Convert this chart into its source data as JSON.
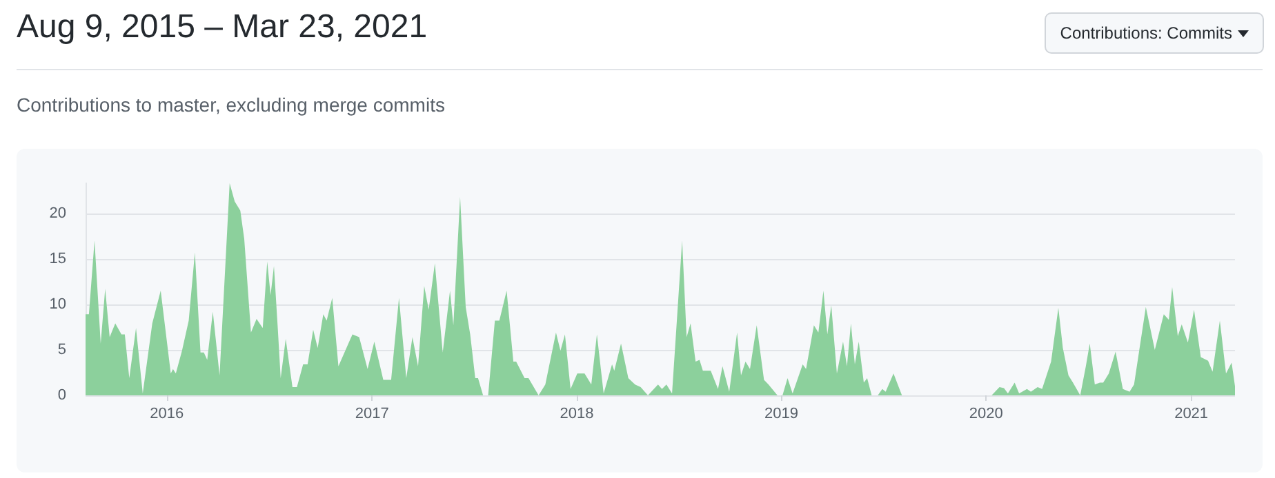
{
  "chart_data": {
    "type": "area",
    "title": "Aug 9, 2015 – Mar 23, 2021",
    "subtitle": "Contributions to master, excluding merge commits",
    "annotations": [
      "Contributions: Commits"
    ],
    "x": [
      "2015-08-09",
      "2015-08-15",
      "2015-08-25",
      "2015-09-05",
      "2015-09-13",
      "2015-09-21",
      "2015-10-01",
      "2015-10-12",
      "2015-10-18",
      "2015-10-26",
      "2015-11-07",
      "2015-11-19",
      "2015-12-06",
      "2015-12-21",
      "2016-01-08",
      "2016-01-12",
      "2016-01-17",
      "2016-01-28",
      "2016-02-09",
      "2016-02-20",
      "2016-03-01",
      "2016-03-07",
      "2016-03-13",
      "2016-03-23",
      "2016-04-04",
      "2016-04-22",
      "2016-05-01",
      "2016-05-11",
      "2016-05-18",
      "2016-05-30",
      "2016-06-09",
      "2016-06-20",
      "2016-06-28",
      "2016-07-04",
      "2016-07-10",
      "2016-07-17",
      "2016-07-22",
      "2016-07-31",
      "2016-08-12",
      "2016-08-20",
      "2016-08-31",
      "2016-09-08",
      "2016-09-18",
      "2016-09-26",
      "2016-10-06",
      "2016-10-12",
      "2016-10-22",
      "2016-11-02",
      "2016-11-27",
      "2016-12-09",
      "2016-12-24",
      "2017-01-05",
      "2017-01-21",
      "2017-02-04",
      "2017-02-18",
      "2017-03-03",
      "2017-03-14",
      "2017-03-24",
      "2017-04-04",
      "2017-04-12",
      "2017-04-23",
      "2017-05-07",
      "2017-05-20",
      "2017-05-26",
      "2017-06-07",
      "2017-06-17",
      "2017-06-25",
      "2017-07-04",
      "2017-07-09",
      "2017-07-18",
      "2017-07-27",
      "2017-08-08",
      "2017-08-16",
      "2017-08-29",
      "2017-09-10",
      "2017-09-15",
      "2017-09-30",
      "2017-10-07",
      "2017-10-25",
      "2017-11-06",
      "2017-11-25",
      "2017-12-03",
      "2017-12-11",
      "2017-12-21",
      "2018-01-02",
      "2018-01-15",
      "2018-01-27",
      "2018-02-06",
      "2018-02-18",
      "2018-03-05",
      "2018-03-09",
      "2018-03-21",
      "2018-04-03",
      "2018-04-15",
      "2018-04-25",
      "2018-05-08",
      "2018-05-26",
      "2018-06-02",
      "2018-06-10",
      "2018-06-20",
      "2018-07-08",
      "2018-07-16",
      "2018-07-23",
      "2018-08-01",
      "2018-08-08",
      "2018-08-14",
      "2018-08-28",
      "2018-09-10",
      "2018-09-18",
      "2018-09-30",
      "2018-10-14",
      "2018-10-21",
      "2018-10-29",
      "2018-11-06",
      "2018-11-18",
      "2018-12-01",
      "2018-12-09",
      "2018-12-25",
      "2019-01-03",
      "2019-01-12",
      "2019-01-21",
      "2019-02-08",
      "2019-02-14",
      "2019-02-28",
      "2019-03-08",
      "2019-03-17",
      "2019-03-24",
      "2019-03-31",
      "2019-04-10",
      "2019-04-21",
      "2019-04-28",
      "2019-05-05",
      "2019-05-12",
      "2019-05-19",
      "2019-05-28",
      "2019-06-03",
      "2019-06-11",
      "2019-06-22",
      "2019-06-30",
      "2019-07-06",
      "2019-07-20",
      "2019-08-04",
      "2020-01-11",
      "2020-01-25",
      "2020-02-02",
      "2020-02-09",
      "2020-02-21",
      "2020-02-29",
      "2020-03-14",
      "2020-03-21",
      "2020-04-02",
      "2020-04-10",
      "2020-04-26",
      "2020-05-09",
      "2020-05-17",
      "2020-05-27",
      "2020-06-04",
      "2020-06-17",
      "2020-06-27",
      "2020-07-04",
      "2020-07-13",
      "2020-07-22",
      "2020-07-28",
      "2020-08-07",
      "2020-08-19",
      "2020-09-01",
      "2020-09-13",
      "2020-09-21",
      "2020-10-12",
      "2020-10-28",
      "2020-11-13",
      "2020-11-22",
      "2020-11-28",
      "2020-12-08",
      "2020-12-15",
      "2020-12-26",
      "2021-01-06",
      "2021-01-18",
      "2021-01-31",
      "2021-02-08",
      "2021-02-21",
      "2021-03-04",
      "2021-03-14",
      "2021-03-20"
    ],
    "series": [
      {
        "color": "#8cd09c",
        "values": [
          8.9,
          8.9,
          17.0,
          5.7,
          11.7,
          6.4,
          7.9,
          6.7,
          6.7,
          1.9,
          7.4,
          0.2,
          7.9,
          11.5,
          2.4,
          2.9,
          2.4,
          4.9,
          8.2,
          15.7,
          4.7,
          4.7,
          3.9,
          9.2,
          2.2,
          23.3,
          21.3,
          20.3,
          17.2,
          6.9,
          8.4,
          7.4,
          14.7,
          11.0,
          14.2,
          7.2,
          1.9,
          6.2,
          0.9,
          0.9,
          3.4,
          3.4,
          7.2,
          5.2,
          8.9,
          8.2,
          10.7,
          3.2,
          6.7,
          6.4,
          2.9,
          5.9,
          1.7,
          1.7,
          10.7,
          1.9,
          6.4,
          3.2,
          12.0,
          9.4,
          14.5,
          4.7,
          11.5,
          7.7,
          21.8,
          9.7,
          6.7,
          1.9,
          1.9,
          0,
          0,
          8.2,
          8.2,
          11.5,
          3.7,
          3.7,
          1.9,
          1.9,
          0,
          1.2,
          6.9,
          4.9,
          6.7,
          0.7,
          2.4,
          2.4,
          1.2,
          6.7,
          0.2,
          3.4,
          2.7,
          5.7,
          1.9,
          1.2,
          0.9,
          0,
          1.2,
          0.7,
          1.2,
          0.2,
          17.0,
          6.4,
          7.9,
          3.7,
          3.9,
          2.7,
          2.7,
          0.7,
          3.2,
          0.4,
          6.9,
          2.2,
          3.7,
          2.9,
          7.7,
          1.7,
          1.2,
          0,
          0,
          1.9,
          0.2,
          3.4,
          2.9,
          7.7,
          6.9,
          11.5,
          6.7,
          9.9,
          2.4,
          5.9,
          3.2,
          7.9,
          3.4,
          5.9,
          1.4,
          1.9,
          0,
          0,
          0.7,
          0.4,
          2.4,
          0,
          0,
          0.9,
          0.8,
          0.2,
          1.4,
          0.2,
          0.7,
          0.4,
          0.9,
          0.7,
          3.7,
          9.6,
          5.2,
          2.2,
          1.4,
          0,
          3.2,
          5.7,
          1.2,
          1.4,
          1.4,
          2.4,
          4.8,
          0.7,
          0.4,
          1.2,
          9.7,
          5.0,
          8.9,
          8.3,
          11.9,
          6.5,
          7.8,
          5.8,
          9.4,
          4.2,
          3.8,
          2.6,
          8.2,
          2.4,
          3.6,
          1.0
        ]
      }
    ],
    "xlim": [
      "2015-08-09",
      "2021-03-20"
    ],
    "xticks": [
      {
        "value": "2016-01-01",
        "label": "2016"
      },
      {
        "value": "2017-01-01",
        "label": "2017"
      },
      {
        "value": "2018-01-01",
        "label": "2018"
      },
      {
        "value": "2019-01-01",
        "label": "2019"
      },
      {
        "value": "2020-01-01",
        "label": "2020"
      },
      {
        "value": "2021-01-01",
        "label": "2021"
      }
    ],
    "ylim": [
      0,
      23.3
    ],
    "yticks": [
      0,
      5,
      10,
      15,
      20
    ],
    "grid": "y",
    "marker": "none"
  }
}
